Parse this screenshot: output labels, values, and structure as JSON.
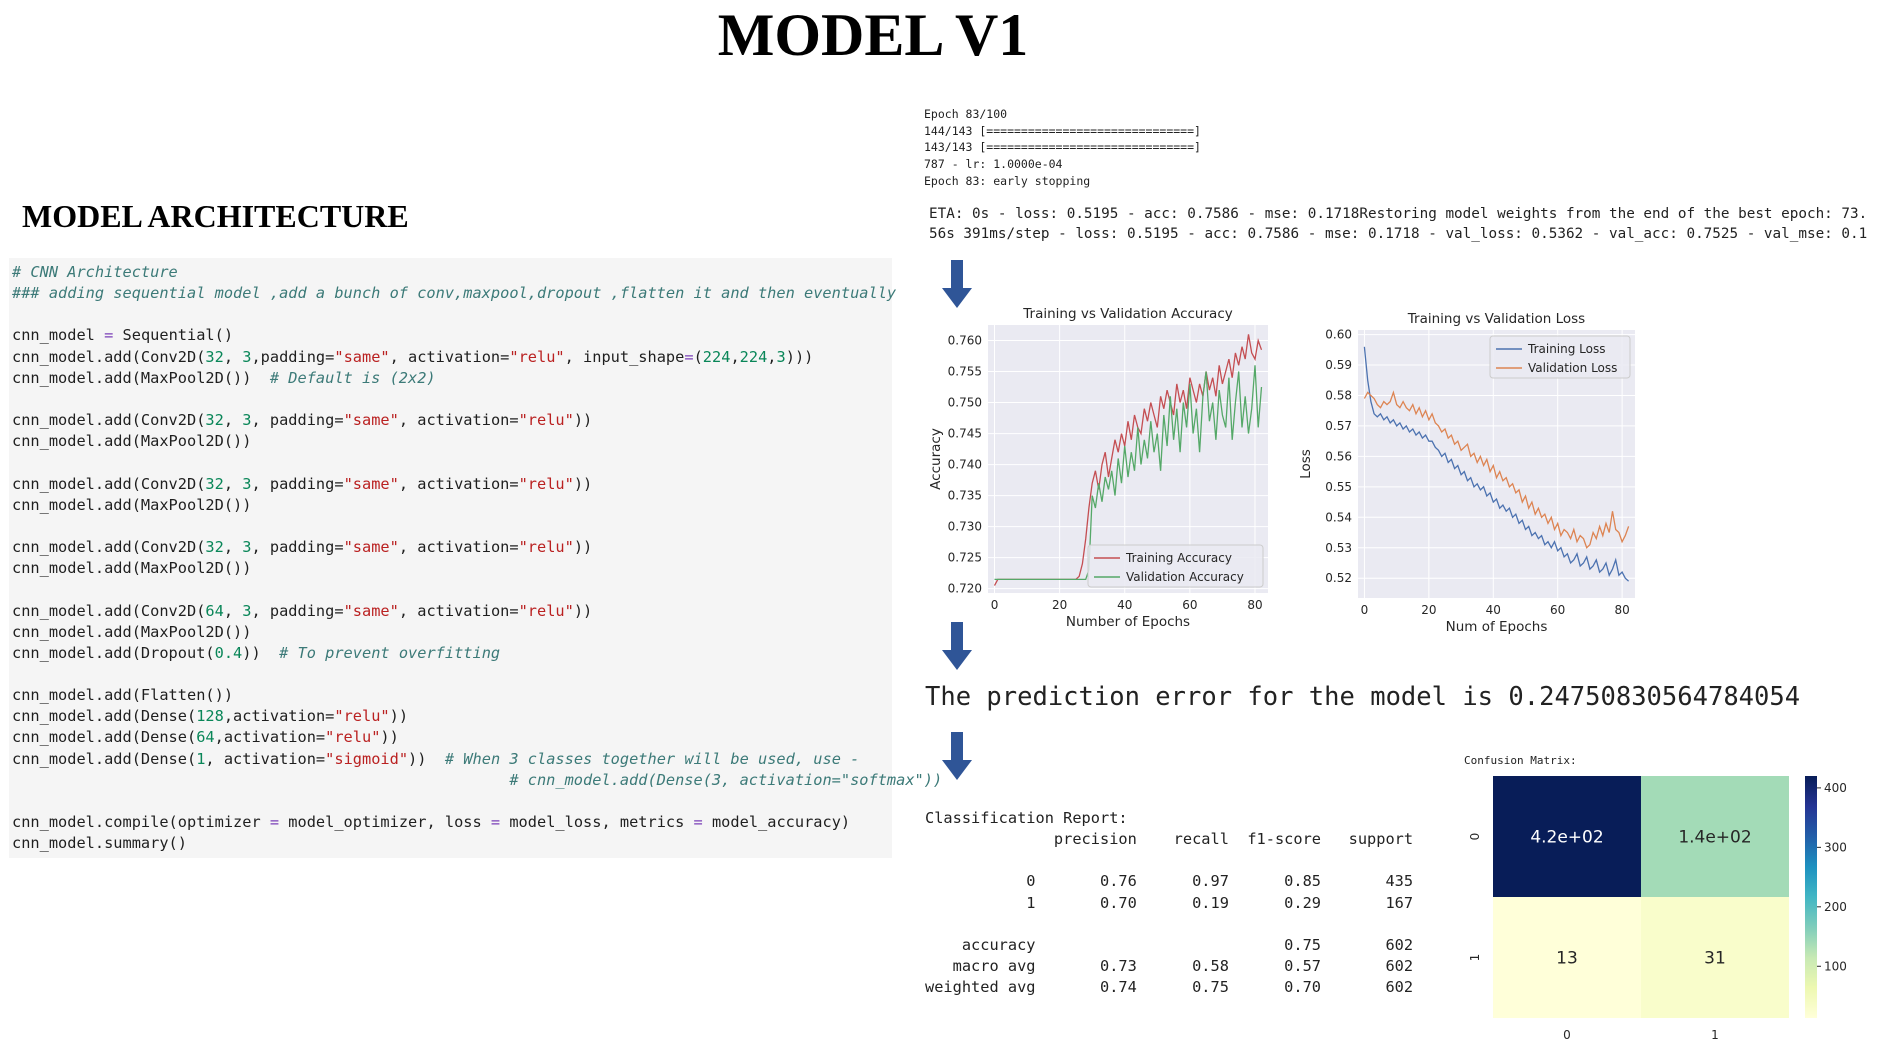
{
  "title": "MODEL V1",
  "architecture_title": "MODEL ARCHITECTURE",
  "code_lines": [
    [
      {
        "t": "# CNN Architecture",
        "c": "cm"
      }
    ],
    [
      {
        "t": "### adding sequential model ,add a bunch of conv,maxpool,dropout ,flatten it and then eventually",
        "c": "cm"
      }
    ],
    [],
    [
      {
        "t": "cnn_model "
      },
      {
        "t": "=",
        "c": "op"
      },
      {
        "t": " Sequential()"
      }
    ],
    [
      {
        "t": "cnn_model.add(Conv2D("
      },
      {
        "t": "32",
        "c": "num"
      },
      {
        "t": ", "
      },
      {
        "t": "3",
        "c": "num"
      },
      {
        "t": ",padding="
      },
      {
        "t": "\"same\"",
        "c": "str"
      },
      {
        "t": ", activation="
      },
      {
        "t": "\"relu\"",
        "c": "str"
      },
      {
        "t": ", input_shape"
      },
      {
        "t": "=",
        "c": "op"
      },
      {
        "t": "("
      },
      {
        "t": "224",
        "c": "num"
      },
      {
        "t": ","
      },
      {
        "t": "224",
        "c": "num"
      },
      {
        "t": ","
      },
      {
        "t": "3",
        "c": "num"
      },
      {
        "t": ")))"
      }
    ],
    [
      {
        "t": "cnn_model.add(MaxPool2D())  "
      },
      {
        "t": "# Default is (2x2)",
        "c": "cm"
      }
    ],
    [],
    [
      {
        "t": "cnn_model.add(Conv2D("
      },
      {
        "t": "32",
        "c": "num"
      },
      {
        "t": ", "
      },
      {
        "t": "3",
        "c": "num"
      },
      {
        "t": ", padding="
      },
      {
        "t": "\"same\"",
        "c": "str"
      },
      {
        "t": ", activation="
      },
      {
        "t": "\"relu\"",
        "c": "str"
      },
      {
        "t": "))"
      }
    ],
    [
      {
        "t": "cnn_model.add(MaxPool2D())"
      }
    ],
    [],
    [
      {
        "t": "cnn_model.add(Conv2D("
      },
      {
        "t": "32",
        "c": "num"
      },
      {
        "t": ", "
      },
      {
        "t": "3",
        "c": "num"
      },
      {
        "t": ", padding="
      },
      {
        "t": "\"same\"",
        "c": "str"
      },
      {
        "t": ", activation="
      },
      {
        "t": "\"relu\"",
        "c": "str"
      },
      {
        "t": "))"
      }
    ],
    [
      {
        "t": "cnn_model.add(MaxPool2D())"
      }
    ],
    [],
    [
      {
        "t": "cnn_model.add(Conv2D("
      },
      {
        "t": "32",
        "c": "num"
      },
      {
        "t": ", "
      },
      {
        "t": "3",
        "c": "num"
      },
      {
        "t": ", padding="
      },
      {
        "t": "\"same\"",
        "c": "str"
      },
      {
        "t": ", activation="
      },
      {
        "t": "\"relu\"",
        "c": "str"
      },
      {
        "t": "))"
      }
    ],
    [
      {
        "t": "cnn_model.add(MaxPool2D())"
      }
    ],
    [],
    [
      {
        "t": "cnn_model.add(Conv2D("
      },
      {
        "t": "64",
        "c": "num"
      },
      {
        "t": ", "
      },
      {
        "t": "3",
        "c": "num"
      },
      {
        "t": ", padding="
      },
      {
        "t": "\"same\"",
        "c": "str"
      },
      {
        "t": ", activation="
      },
      {
        "t": "\"relu\"",
        "c": "str"
      },
      {
        "t": "))"
      }
    ],
    [
      {
        "t": "cnn_model.add(MaxPool2D())"
      }
    ],
    [
      {
        "t": "cnn_model.add(Dropout("
      },
      {
        "t": "0.4",
        "c": "num"
      },
      {
        "t": "))  "
      },
      {
        "t": "# To prevent overfitting",
        "c": "cm"
      }
    ],
    [],
    [
      {
        "t": "cnn_model.add(Flatten())"
      }
    ],
    [
      {
        "t": "cnn_model.add(Dense("
      },
      {
        "t": "128",
        "c": "num"
      },
      {
        "t": ",activation="
      },
      {
        "t": "\"relu\"",
        "c": "str"
      },
      {
        "t": "))"
      }
    ],
    [
      {
        "t": "cnn_model.add(Dense("
      },
      {
        "t": "64",
        "c": "num"
      },
      {
        "t": ",activation="
      },
      {
        "t": "\"relu\"",
        "c": "str"
      },
      {
        "t": "))"
      }
    ],
    [
      {
        "t": "cnn_model.add(Dense("
      },
      {
        "t": "1",
        "c": "num"
      },
      {
        "t": ", activation="
      },
      {
        "t": "\"sigmoid\"",
        "c": "str"
      },
      {
        "t": "))  "
      },
      {
        "t": "# When 3 classes together will be used, use -",
        "c": "cm"
      }
    ],
    [
      {
        "t": "                                                      "
      },
      {
        "t": "# cnn_model.add(Dense(3, activation=\"softmax\"))",
        "c": "cm"
      }
    ],
    [],
    [
      {
        "t": "cnn_model.compile(optimizer "
      },
      {
        "t": "=",
        "c": "op"
      },
      {
        "t": " model_optimizer, loss "
      },
      {
        "t": "=",
        "c": "op"
      },
      {
        "t": " model_loss, metrics "
      },
      {
        "t": "=",
        "c": "op"
      },
      {
        "t": " model_accuracy)"
      }
    ],
    [
      {
        "t": "cnn_model.summary()"
      }
    ]
  ],
  "training_log_lines": [
    "Epoch 83/100",
    "144/143 [==============================]",
    "143/143 [==============================]",
    "787 - lr: 1.0000e-04",
    "Epoch 83: early stopping"
  ],
  "eta_lines": [
    "ETA: 0s - loss: 0.5195 - acc: 0.7586 - mse: 0.1718Restoring model weights from the end of the best epoch: 73.",
    "56s 391ms/step - loss: 0.5195 - acc: 0.7586 - mse: 0.1718 - val_loss: 0.5362 - val_acc: 0.7525 - val_mse: 0.1"
  ],
  "prediction_text": "The prediction error for the model is 0.24750830564784054",
  "classification_report_lines": [
    "Classification Report:",
    "              precision    recall  f1-score   support",
    "",
    "           0       0.76      0.97      0.85       435",
    "           1       0.70      0.19      0.29       167",
    "",
    "    accuracy                           0.75       602",
    "   macro avg       0.73      0.58      0.57       602",
    "weighted avg       0.74      0.75      0.70       602"
  ],
  "colors": {
    "arrow": "#2f5597",
    "plot_bg": "#eaeaf2",
    "train": "#4c72b0",
    "val": "#dd8452",
    "acc_train": "#c44e52",
    "acc_val": "#55a868"
  },
  "chart_data": [
    {
      "type": "line",
      "title": "Training vs Validation Accuracy",
      "xlabel": "Number of Epochs",
      "ylabel": "Accuracy",
      "xlim": [
        -2,
        84
      ],
      "ylim": [
        0.7193,
        0.7625
      ],
      "xticks": [
        0,
        20,
        40,
        60,
        80
      ],
      "yticks": [
        0.72,
        0.725,
        0.73,
        0.735,
        0.74,
        0.745,
        0.75,
        0.755,
        0.76
      ],
      "ytick_labels": [
        "0.720",
        "0.725",
        "0.730",
        "0.735",
        "0.740",
        "0.745",
        "0.750",
        "0.755",
        "0.760"
      ],
      "legend": "lower-right",
      "grid": true,
      "x": [
        0,
        1,
        2,
        3,
        4,
        5,
        6,
        7,
        8,
        9,
        10,
        11,
        12,
        13,
        14,
        15,
        16,
        17,
        18,
        19,
        20,
        21,
        22,
        23,
        24,
        25,
        26,
        27,
        28,
        29,
        30,
        31,
        32,
        33,
        34,
        35,
        36,
        37,
        38,
        39,
        40,
        41,
        42,
        43,
        44,
        45,
        46,
        47,
        48,
        49,
        50,
        51,
        52,
        53,
        54,
        55,
        56,
        57,
        58,
        59,
        60,
        61,
        62,
        63,
        64,
        65,
        66,
        67,
        68,
        69,
        70,
        71,
        72,
        73,
        74,
        75,
        76,
        77,
        78,
        79,
        80,
        81,
        82
      ],
      "series": [
        {
          "name": "Training Accuracy",
          "values": [
            0.7205,
            0.7215,
            0.7215,
            0.7215,
            0.7215,
            0.7215,
            0.7215,
            0.7215,
            0.7215,
            0.7215,
            0.7215,
            0.7215,
            0.7215,
            0.7215,
            0.7215,
            0.7215,
            0.7215,
            0.7215,
            0.7215,
            0.7215,
            0.7215,
            0.7215,
            0.7215,
            0.7215,
            0.7215,
            0.7215,
            0.722,
            0.724,
            0.728,
            0.733,
            0.737,
            0.739,
            0.736,
            0.74,
            0.742,
            0.738,
            0.741,
            0.744,
            0.742,
            0.745,
            0.743,
            0.747,
            0.744,
            0.748,
            0.746,
            0.745,
            0.749,
            0.747,
            0.75,
            0.748,
            0.746,
            0.751,
            0.749,
            0.752,
            0.75,
            0.748,
            0.753,
            0.75,
            0.752,
            0.749,
            0.754,
            0.752,
            0.75,
            0.753,
            0.751,
            0.755,
            0.752,
            0.754,
            0.751,
            0.756,
            0.753,
            0.755,
            0.757,
            0.754,
            0.758,
            0.756,
            0.759,
            0.757,
            0.761,
            0.758,
            0.757,
            0.76,
            0.7585
          ]
        },
        {
          "name": "Validation Accuracy",
          "values": [
            0.7215,
            0.7215,
            0.7215,
            0.7215,
            0.7215,
            0.7215,
            0.7215,
            0.7215,
            0.7215,
            0.7215,
            0.7215,
            0.7215,
            0.7215,
            0.7215,
            0.7215,
            0.7215,
            0.7215,
            0.7215,
            0.7215,
            0.7215,
            0.7215,
            0.7215,
            0.7215,
            0.7215,
            0.7215,
            0.7215,
            0.7215,
            0.7215,
            0.7215,
            0.723,
            0.735,
            0.733,
            0.737,
            0.734,
            0.738,
            0.736,
            0.739,
            0.735,
            0.741,
            0.737,
            0.743,
            0.738,
            0.742,
            0.739,
            0.746,
            0.74,
            0.744,
            0.741,
            0.747,
            0.742,
            0.745,
            0.739,
            0.748,
            0.743,
            0.751,
            0.744,
            0.749,
            0.742,
            0.75,
            0.746,
            0.753,
            0.745,
            0.749,
            0.742,
            0.751,
            0.755,
            0.747,
            0.75,
            0.744,
            0.752,
            0.748,
            0.746,
            0.754,
            0.744,
            0.75,
            0.755,
            0.746,
            0.751,
            0.745,
            0.749,
            0.756,
            0.746,
            0.7525
          ]
        }
      ]
    },
    {
      "type": "line",
      "title": "Training vs Validation Loss",
      "xlabel": "Num of Epochs",
      "ylabel": "Loss",
      "xlim": [
        -2,
        84
      ],
      "ylim": [
        0.5135,
        0.6015
      ],
      "xticks": [
        0,
        20,
        40,
        60,
        80
      ],
      "yticks": [
        0.52,
        0.53,
        0.54,
        0.55,
        0.56,
        0.57,
        0.58,
        0.59,
        0.6
      ],
      "ytick_labels": [
        "0.52",
        "0.53",
        "0.54",
        "0.55",
        "0.56",
        "0.57",
        "0.58",
        "0.59",
        "0.60"
      ],
      "legend": "upper-right",
      "grid": true,
      "x": [
        0,
        1,
        2,
        3,
        4,
        5,
        6,
        7,
        8,
        9,
        10,
        11,
        12,
        13,
        14,
        15,
        16,
        17,
        18,
        19,
        20,
        21,
        22,
        23,
        24,
        25,
        26,
        27,
        28,
        29,
        30,
        31,
        32,
        33,
        34,
        35,
        36,
        37,
        38,
        39,
        40,
        41,
        42,
        43,
        44,
        45,
        46,
        47,
        48,
        49,
        50,
        51,
        52,
        53,
        54,
        55,
        56,
        57,
        58,
        59,
        60,
        61,
        62,
        63,
        64,
        65,
        66,
        67,
        68,
        69,
        70,
        71,
        72,
        73,
        74,
        75,
        76,
        77,
        78,
        79,
        80,
        81,
        82
      ],
      "series": [
        {
          "name": "Training Loss",
          "values": [
            0.596,
            0.585,
            0.578,
            0.574,
            0.573,
            0.574,
            0.572,
            0.573,
            0.571,
            0.572,
            0.57,
            0.571,
            0.569,
            0.57,
            0.568,
            0.569,
            0.567,
            0.568,
            0.566,
            0.567,
            0.565,
            0.565,
            0.563,
            0.562,
            0.56,
            0.561,
            0.558,
            0.559,
            0.556,
            0.557,
            0.554,
            0.555,
            0.552,
            0.553,
            0.55,
            0.551,
            0.549,
            0.55,
            0.547,
            0.548,
            0.545,
            0.546,
            0.543,
            0.544,
            0.542,
            0.543,
            0.54,
            0.541,
            0.538,
            0.539,
            0.536,
            0.537,
            0.534,
            0.535,
            0.533,
            0.534,
            0.531,
            0.532,
            0.53,
            0.532,
            0.529,
            0.53,
            0.527,
            0.528,
            0.525,
            0.526,
            0.528,
            0.524,
            0.525,
            0.527,
            0.523,
            0.524,
            0.526,
            0.522,
            0.523,
            0.525,
            0.521,
            0.523,
            0.526,
            0.521,
            0.522,
            0.52,
            0.519
          ]
        },
        {
          "name": "Validation Loss",
          "values": [
            0.579,
            0.581,
            0.58,
            0.579,
            0.577,
            0.576,
            0.578,
            0.577,
            0.578,
            0.581,
            0.577,
            0.576,
            0.578,
            0.576,
            0.575,
            0.577,
            0.574,
            0.576,
            0.573,
            0.575,
            0.572,
            0.574,
            0.571,
            0.57,
            0.568,
            0.569,
            0.566,
            0.567,
            0.564,
            0.565,
            0.562,
            0.563,
            0.564,
            0.56,
            0.561,
            0.558,
            0.56,
            0.557,
            0.559,
            0.555,
            0.557,
            0.553,
            0.555,
            0.552,
            0.553,
            0.55,
            0.551,
            0.548,
            0.549,
            0.545,
            0.547,
            0.543,
            0.545,
            0.541,
            0.543,
            0.54,
            0.541,
            0.538,
            0.54,
            0.536,
            0.538,
            0.534,
            0.536,
            0.535,
            0.533,
            0.536,
            0.532,
            0.534,
            0.533,
            0.53,
            0.531,
            0.535,
            0.533,
            0.537,
            0.534,
            0.538,
            0.535,
            0.542,
            0.536,
            0.535,
            0.532,
            0.534,
            0.537
          ]
        }
      ]
    },
    {
      "type": "heatmap",
      "title": "Confusion Matrix:",
      "row_labels": [
        "0",
        "1"
      ],
      "col_labels": [
        "0",
        "1"
      ],
      "values": [
        [
          420,
          140
        ],
        [
          13,
          31
        ]
      ],
      "cell_labels": [
        [
          "4.2e+02",
          "1.4e+02"
        ],
        [
          "13",
          "31"
        ]
      ],
      "colorbar_ticks": [
        100,
        200,
        300,
        400
      ],
      "colorbar_tick_labels": [
        "100",
        "200",
        "300",
        "400"
      ],
      "vmin": 13,
      "vmax": 420,
      "colormap": "YlGnBu"
    }
  ]
}
